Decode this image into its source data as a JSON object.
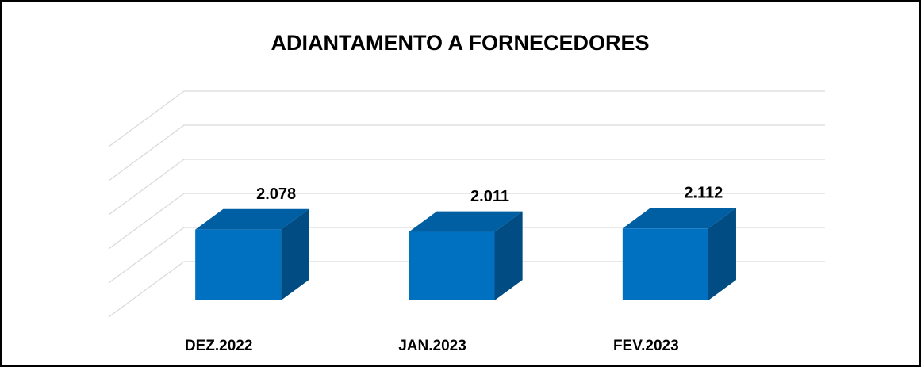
{
  "chart_data": {
    "type": "bar3d",
    "title": "ADIANTAMENTO A FORNECEDORES",
    "categories": [
      "DEZ.2022",
      "JAN.2023",
      "FEV.2023"
    ],
    "values": [
      2078,
      2011,
      2112
    ],
    "value_labels": [
      "2.078",
      "2.011",
      "2.112"
    ],
    "color": "#0070c0",
    "ylim": [
      0,
      5000
    ],
    "yticks": [
      0,
      1000,
      2000,
      3000,
      4000,
      5000
    ],
    "grid": true
  }
}
